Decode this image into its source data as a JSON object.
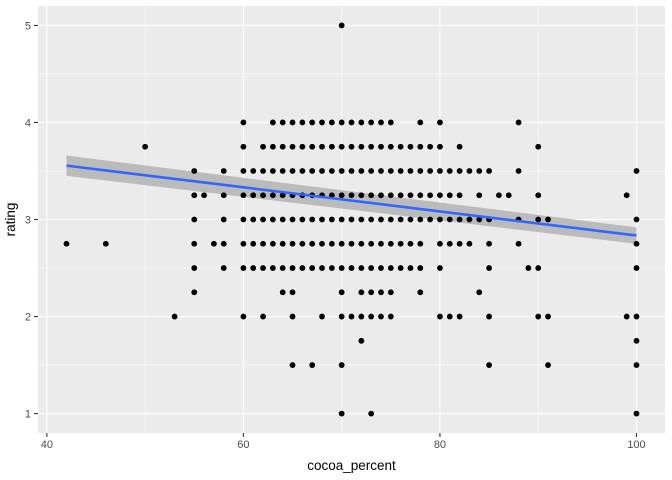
{
  "chart_data": {
    "type": "scatter",
    "xlabel": "cocoa_percent",
    "ylabel": "rating",
    "xlim": [
      39.1,
      102.9
    ],
    "ylim": [
      0.8,
      5.2
    ],
    "x_ticks": [
      40,
      60,
      80,
      100
    ],
    "y_ticks": [
      1,
      2,
      3,
      4,
      5
    ],
    "grid": true,
    "background_color": "#EBEBEB",
    "grid_color": "#FFFFFF",
    "point_color": "#000000",
    "line_color": "#3366FF",
    "ribbon_color": "#B3B3B3",
    "points": [
      [
        42,
        2.75
      ],
      [
        46,
        2.75
      ],
      [
        50,
        3.75
      ],
      [
        53,
        2.0
      ],
      [
        55,
        3.5
      ],
      [
        55,
        3.25
      ],
      [
        55,
        3.0
      ],
      [
        55,
        2.75
      ],
      [
        55,
        2.5
      ],
      [
        55,
        2.25
      ],
      [
        56,
        3.25
      ],
      [
        57,
        2.75
      ],
      [
        58,
        3.5
      ],
      [
        58,
        3.25
      ],
      [
        58,
        3.0
      ],
      [
        58,
        2.75
      ],
      [
        58,
        2.5
      ],
      [
        60,
        4.0
      ],
      [
        60,
        3.75
      ],
      [
        60,
        3.5
      ],
      [
        60,
        3.25
      ],
      [
        60,
        3.0
      ],
      [
        60,
        2.75
      ],
      [
        60,
        2.5
      ],
      [
        60,
        2.0
      ],
      [
        61,
        3.5
      ],
      [
        61,
        3.25
      ],
      [
        61,
        3.0
      ],
      [
        61,
        2.75
      ],
      [
        61,
        2.5
      ],
      [
        62,
        3.75
      ],
      [
        62,
        3.5
      ],
      [
        62,
        3.25
      ],
      [
        62,
        3.0
      ],
      [
        62,
        2.75
      ],
      [
        62,
        2.5
      ],
      [
        62,
        2.0
      ],
      [
        63,
        4.0
      ],
      [
        63,
        3.75
      ],
      [
        63,
        3.5
      ],
      [
        63,
        3.25
      ],
      [
        63,
        3.0
      ],
      [
        63,
        2.75
      ],
      [
        63,
        2.5
      ],
      [
        64,
        4.0
      ],
      [
        64,
        3.75
      ],
      [
        64,
        3.5
      ],
      [
        64,
        3.25
      ],
      [
        64,
        3.0
      ],
      [
        64,
        2.75
      ],
      [
        64,
        2.5
      ],
      [
        64,
        2.25
      ],
      [
        65,
        4.0
      ],
      [
        65,
        3.75
      ],
      [
        65,
        3.5
      ],
      [
        65,
        3.25
      ],
      [
        65,
        3.0
      ],
      [
        65,
        2.75
      ],
      [
        65,
        2.5
      ],
      [
        65,
        2.25
      ],
      [
        65,
        2.0
      ],
      [
        65,
        1.5
      ],
      [
        66,
        4.0
      ],
      [
        66,
        3.75
      ],
      [
        66,
        3.5
      ],
      [
        66,
        3.25
      ],
      [
        66,
        3.0
      ],
      [
        66,
        2.75
      ],
      [
        66,
        2.5
      ],
      [
        67,
        4.0
      ],
      [
        67,
        3.75
      ],
      [
        67,
        3.5
      ],
      [
        67,
        3.25
      ],
      [
        67,
        3.0
      ],
      [
        67,
        2.75
      ],
      [
        67,
        2.5
      ],
      [
        67,
        1.5
      ],
      [
        68,
        4.0
      ],
      [
        68,
        3.75
      ],
      [
        68,
        3.5
      ],
      [
        68,
        3.25
      ],
      [
        68,
        3.0
      ],
      [
        68,
        2.75
      ],
      [
        68,
        2.5
      ],
      [
        68,
        2.0
      ],
      [
        69,
        4.0
      ],
      [
        69,
        3.75
      ],
      [
        69,
        3.5
      ],
      [
        69,
        3.25
      ],
      [
        69,
        3.0
      ],
      [
        69,
        2.75
      ],
      [
        69,
        2.5
      ],
      [
        70,
        5.0
      ],
      [
        70,
        4.0
      ],
      [
        70,
        3.75
      ],
      [
        70,
        3.5
      ],
      [
        70,
        3.25
      ],
      [
        70,
        3.0
      ],
      [
        70,
        2.75
      ],
      [
        70,
        2.5
      ],
      [
        70,
        2.25
      ],
      [
        70,
        2.0
      ],
      [
        70,
        1.5
      ],
      [
        70,
        1.0
      ],
      [
        71,
        4.0
      ],
      [
        71,
        3.75
      ],
      [
        71,
        3.5
      ],
      [
        71,
        3.25
      ],
      [
        71,
        3.0
      ],
      [
        71,
        2.75
      ],
      [
        71,
        2.5
      ],
      [
        71,
        2.0
      ],
      [
        72,
        4.0
      ],
      [
        72,
        3.75
      ],
      [
        72,
        3.5
      ],
      [
        72,
        3.25
      ],
      [
        72,
        3.0
      ],
      [
        72,
        2.75
      ],
      [
        72,
        2.5
      ],
      [
        72,
        2.25
      ],
      [
        72,
        2.0
      ],
      [
        72,
        1.75
      ],
      [
        73,
        4.0
      ],
      [
        73,
        3.75
      ],
      [
        73,
        3.5
      ],
      [
        73,
        3.25
      ],
      [
        73,
        3.0
      ],
      [
        73,
        2.75
      ],
      [
        73,
        2.5
      ],
      [
        73,
        2.25
      ],
      [
        73,
        2.0
      ],
      [
        73,
        1.0
      ],
      [
        74,
        4.0
      ],
      [
        74,
        3.75
      ],
      [
        74,
        3.5
      ],
      [
        74,
        3.25
      ],
      [
        74,
        3.0
      ],
      [
        74,
        2.75
      ],
      [
        74,
        2.5
      ],
      [
        74,
        2.25
      ],
      [
        74,
        2.0
      ],
      [
        75,
        4.0
      ],
      [
        75,
        3.75
      ],
      [
        75,
        3.5
      ],
      [
        75,
        3.25
      ],
      [
        75,
        3.0
      ],
      [
        75,
        2.75
      ],
      [
        75,
        2.5
      ],
      [
        75,
        2.25
      ],
      [
        75,
        2.0
      ],
      [
        76,
        3.75
      ],
      [
        76,
        3.5
      ],
      [
        76,
        3.25
      ],
      [
        76,
        3.0
      ],
      [
        76,
        2.75
      ],
      [
        76,
        2.5
      ],
      [
        77,
        3.75
      ],
      [
        77,
        3.5
      ],
      [
        77,
        3.25
      ],
      [
        77,
        3.0
      ],
      [
        77,
        2.75
      ],
      [
        77,
        2.5
      ],
      [
        78,
        4.0
      ],
      [
        78,
        3.75
      ],
      [
        78,
        3.5
      ],
      [
        78,
        3.25
      ],
      [
        78,
        3.0
      ],
      [
        78,
        2.75
      ],
      [
        78,
        2.5
      ],
      [
        78,
        2.25
      ],
      [
        79,
        3.75
      ],
      [
        79,
        3.5
      ],
      [
        79,
        3.25
      ],
      [
        79,
        3.0
      ],
      [
        80,
        4.0
      ],
      [
        80,
        3.75
      ],
      [
        80,
        3.5
      ],
      [
        80,
        3.25
      ],
      [
        80,
        3.0
      ],
      [
        80,
        2.75
      ],
      [
        80,
        2.5
      ],
      [
        80,
        2.0
      ],
      [
        81,
        3.5
      ],
      [
        81,
        3.25
      ],
      [
        81,
        3.0
      ],
      [
        81,
        2.75
      ],
      [
        81,
        2.0
      ],
      [
        82,
        3.75
      ],
      [
        82,
        3.5
      ],
      [
        82,
        3.25
      ],
      [
        82,
        3.0
      ],
      [
        82,
        2.75
      ],
      [
        82,
        2.0
      ],
      [
        83,
        3.5
      ],
      [
        83,
        3.0
      ],
      [
        83,
        2.75
      ],
      [
        84,
        3.5
      ],
      [
        84,
        3.25
      ],
      [
        84,
        3.0
      ],
      [
        84,
        2.25
      ],
      [
        85,
        3.5
      ],
      [
        85,
        3.0
      ],
      [
        85,
        2.75
      ],
      [
        85,
        2.5
      ],
      [
        85,
        2.0
      ],
      [
        85,
        1.5
      ],
      [
        86,
        3.25
      ],
      [
        87,
        3.25
      ],
      [
        88,
        4.0
      ],
      [
        88,
        3.5
      ],
      [
        88,
        3.0
      ],
      [
        88,
        2.75
      ],
      [
        89,
        2.5
      ],
      [
        90,
        3.75
      ],
      [
        90,
        3.25
      ],
      [
        90,
        3.0
      ],
      [
        90,
        2.5
      ],
      [
        90,
        2.0
      ],
      [
        91,
        3.0
      ],
      [
        91,
        2.0
      ],
      [
        91,
        1.5
      ],
      [
        99,
        3.25
      ],
      [
        99,
        2.0
      ],
      [
        100,
        3.5
      ],
      [
        100,
        3.0
      ],
      [
        100,
        2.75
      ],
      [
        100,
        2.5
      ],
      [
        100,
        2.0
      ],
      [
        100,
        1.75
      ],
      [
        100,
        1.5
      ],
      [
        100,
        1.0
      ]
    ],
    "trend": {
      "method": "linear",
      "x": [
        42,
        100
      ],
      "y": [
        3.555,
        2.835
      ],
      "se_upper": [
        3.66,
        2.92
      ],
      "se_lower": [
        3.45,
        2.75
      ]
    }
  }
}
